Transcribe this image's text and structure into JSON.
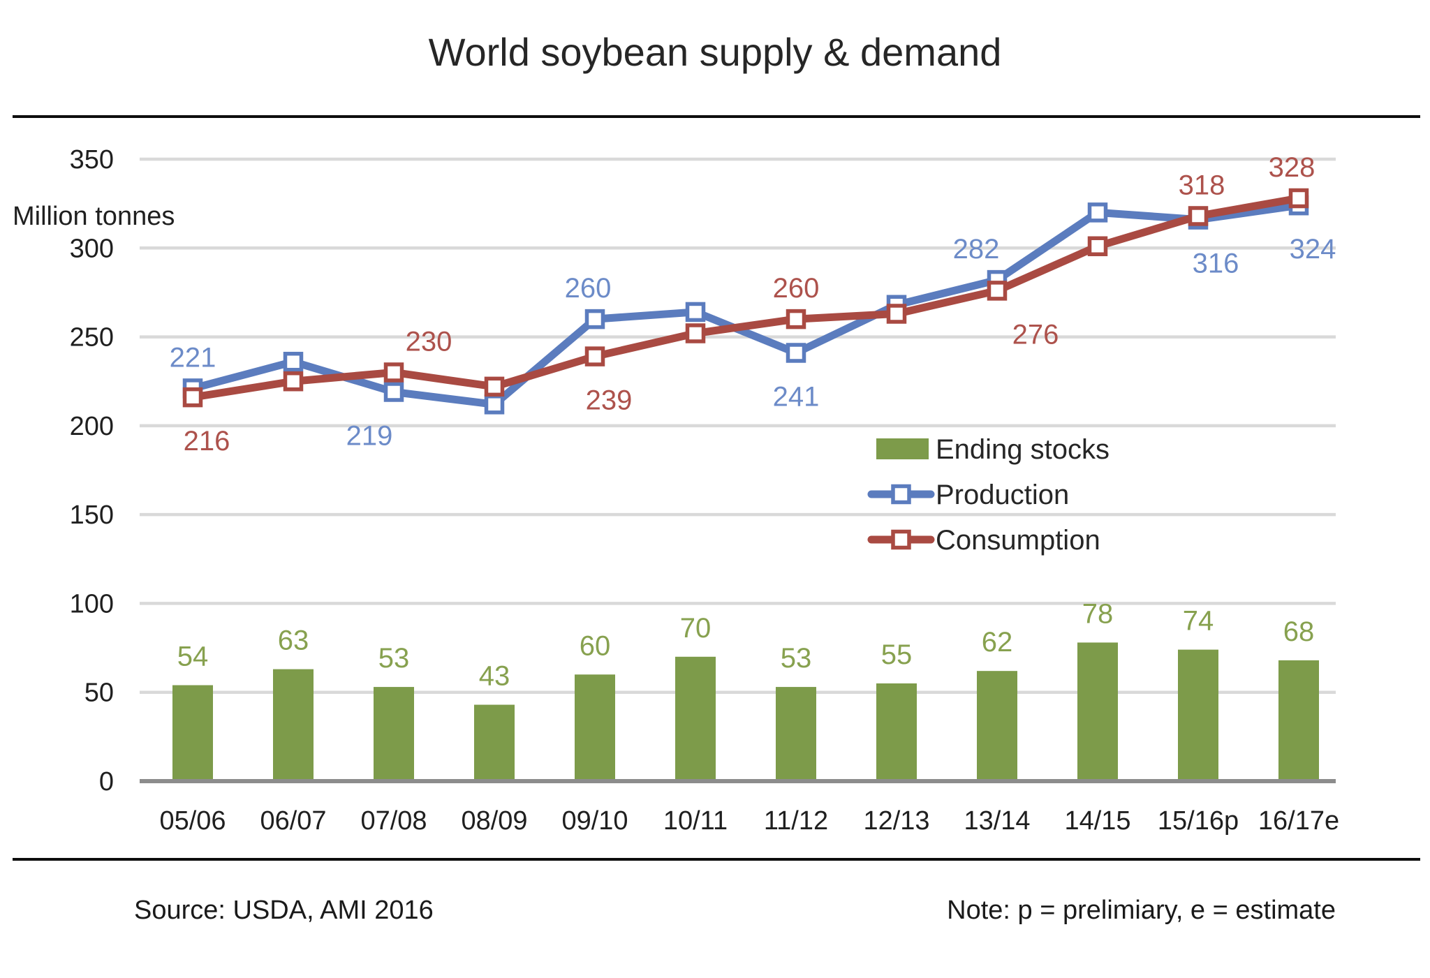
{
  "title": "World soybean supply & demand",
  "source": "Source:  USDA, AMI 2016",
  "note": "Note: p = prelimiary, e = estimate",
  "y_axis": {
    "label": "Million tonnes",
    "ticks": [
      350,
      300,
      250,
      200,
      150,
      100,
      50,
      0
    ]
  },
  "colors": {
    "production": "#5B7CBE",
    "production_label": "#6C8BC8",
    "consumption": "#A94A42",
    "consumption_label": "#AD524C",
    "ending_stocks": "#7D9B4A",
    "ending_stocks_label": "#87A14F",
    "gridline": "#D9D9D9",
    "axis_line": "#8C8C8C",
    "text": "#1F1F1F",
    "rule": "#0D0D0D"
  },
  "legend": {
    "items": [
      {
        "label": "Ending stocks",
        "type": "bar",
        "series": "ending_stocks"
      },
      {
        "label": "Production",
        "type": "line",
        "series": "production"
      },
      {
        "label": "Consumption",
        "type": "line",
        "series": "consumption"
      }
    ]
  },
  "chart_data": {
    "type": "combo",
    "title": "World soybean supply & demand",
    "ylabel": "Million tonnes",
    "ylim": [
      0,
      350
    ],
    "grid": true,
    "legend_position": "middle-right",
    "categories": [
      "05/06",
      "06/07",
      "07/08",
      "08/09",
      "09/10",
      "10/11",
      "11/12",
      "12/13",
      "13/14",
      "14/15",
      "15/16p",
      "16/17e"
    ],
    "series": [
      {
        "name": "Ending stocks",
        "type": "bar",
        "values": [
          54,
          63,
          53,
          43,
          60,
          70,
          53,
          55,
          62,
          78,
          74,
          68
        ],
        "labels": [
          {
            "index": 0,
            "text": "54"
          },
          {
            "index": 1,
            "text": "63"
          },
          {
            "index": 2,
            "text": "53"
          },
          {
            "index": 3,
            "text": "43"
          },
          {
            "index": 4,
            "text": "60"
          },
          {
            "index": 5,
            "text": "70"
          },
          {
            "index": 6,
            "text": "53"
          },
          {
            "index": 7,
            "text": "55"
          },
          {
            "index": 8,
            "text": "62"
          },
          {
            "index": 9,
            "text": "78"
          },
          {
            "index": 10,
            "text": "74"
          },
          {
            "index": 11,
            "text": "68"
          }
        ]
      },
      {
        "name": "Production",
        "type": "line",
        "values": [
          221,
          236,
          219,
          212,
          260,
          264,
          241,
          268,
          282,
          320,
          316,
          324
        ],
        "labels": [
          {
            "index": 0,
            "text": "221",
            "pos": "above",
            "dx": 0
          },
          {
            "index": 2,
            "text": "219",
            "pos": "below",
            "dx": -35
          },
          {
            "index": 4,
            "text": "260",
            "pos": "above",
            "dx": -10
          },
          {
            "index": 6,
            "text": "241",
            "pos": "below",
            "dx": 0
          },
          {
            "index": 8,
            "text": "282",
            "pos": "above",
            "dx": -30
          },
          {
            "index": 10,
            "text": "316",
            "pos": "below",
            "dx": 25
          },
          {
            "index": 11,
            "text": "324",
            "pos": "below",
            "dx": 20
          }
        ]
      },
      {
        "name": "Consumption",
        "type": "line",
        "values": [
          216,
          225,
          230,
          222,
          239,
          252,
          260,
          263,
          276,
          301,
          318,
          328
        ],
        "labels": [
          {
            "index": 0,
            "text": "216",
            "pos": "below",
            "dx": 20
          },
          {
            "index": 2,
            "text": "230",
            "pos": "above",
            "dx": 50
          },
          {
            "index": 4,
            "text": "239",
            "pos": "below",
            "dx": 20
          },
          {
            "index": 6,
            "text": "260",
            "pos": "above",
            "dx": 0
          },
          {
            "index": 8,
            "text": "276",
            "pos": "below",
            "dx": 55
          },
          {
            "index": 10,
            "text": "318",
            "pos": "above",
            "dx": 5
          },
          {
            "index": 11,
            "text": "328",
            "pos": "above",
            "dx": -10
          }
        ]
      }
    ]
  }
}
